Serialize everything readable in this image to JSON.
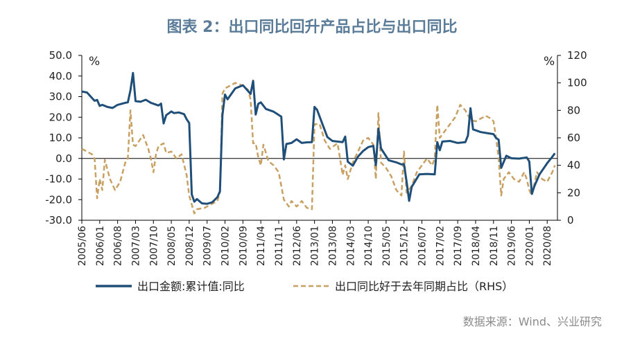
{
  "chart_data": {
    "type": "line",
    "title": "图表 2：出口同比回升产品占比与出口同比",
    "source": "数据来源：Wind、兴业研究",
    "left_unit": "%",
    "right_unit": "%",
    "y_left": {
      "min": -30,
      "max": 50,
      "ticks": [
        "50.0",
        "40.0",
        "30.0",
        "20.0",
        "10.0",
        "0.0",
        "-10.0",
        "-20.0",
        "-30.0"
      ]
    },
    "y_right": {
      "min": 0,
      "max": 120,
      "ticks": [
        "120",
        "100",
        "80",
        "60",
        "40",
        "20",
        "0"
      ]
    },
    "x_range": {
      "start": "2005-06",
      "end": "2020-12"
    },
    "x_ticks": [
      "2005/06",
      "2006/01",
      "2006/08",
      "2007/03",
      "2007/10",
      "2008/05",
      "2008/12",
      "2009/07",
      "2010/02",
      "2010/09",
      "2011/04",
      "2011/11",
      "2012/06",
      "2013/01",
      "2013/08",
      "2014/03",
      "2014/10",
      "2015/05",
      "2015/12",
      "2016/07",
      "2017/02",
      "2017/09",
      "2018/04",
      "2018/11",
      "2019/06",
      "2020/01",
      "2020/08"
    ],
    "legend_position": "bottom",
    "series": [
      {
        "name": "出口金额:累计值:同比",
        "axis": "left",
        "color": "#1f4e79",
        "style": "solid",
        "points": [
          [
            "2005-06",
            32.5
          ],
          [
            "2005-08",
            32
          ],
          [
            "2005-11",
            28
          ],
          [
            "2005-12",
            28.4
          ],
          [
            "2006-01",
            25.5
          ],
          [
            "2006-02",
            26
          ],
          [
            "2006-04",
            25
          ],
          [
            "2006-06",
            24.5
          ],
          [
            "2006-08",
            26
          ],
          [
            "2006-11",
            27
          ],
          [
            "2006-12",
            27.2
          ],
          [
            "2007-01",
            33
          ],
          [
            "2007-02",
            41.5
          ],
          [
            "2007-03",
            27.8
          ],
          [
            "2007-05",
            27.5
          ],
          [
            "2007-07",
            28.5
          ],
          [
            "2007-09",
            27
          ],
          [
            "2007-12",
            25.7
          ],
          [
            "2008-01",
            26.6
          ],
          [
            "2008-02",
            17
          ],
          [
            "2008-03",
            21
          ],
          [
            "2008-05",
            22.8
          ],
          [
            "2008-06",
            22
          ],
          [
            "2008-08",
            22.3
          ],
          [
            "2008-10",
            21.5
          ],
          [
            "2008-11",
            19
          ],
          [
            "2008-12",
            17.2
          ],
          [
            "2009-01",
            -17.5
          ],
          [
            "2009-02",
            -21
          ],
          [
            "2009-03",
            -19.7
          ],
          [
            "2009-05",
            -21.8
          ],
          [
            "2009-07",
            -22
          ],
          [
            "2009-09",
            -21.3
          ],
          [
            "2009-11",
            -18.8
          ],
          [
            "2009-12",
            -16
          ],
          [
            "2010-01",
            21
          ],
          [
            "2010-02",
            31
          ],
          [
            "2010-03",
            28.7
          ],
          [
            "2010-06",
            34
          ],
          [
            "2010-09",
            35.5
          ],
          [
            "2010-12",
            31.3
          ],
          [
            "2011-01",
            37.7
          ],
          [
            "2011-02",
            21.3
          ],
          [
            "2011-03",
            26.5
          ],
          [
            "2011-04",
            27.2
          ],
          [
            "2011-06",
            24
          ],
          [
            "2011-09",
            22.7
          ],
          [
            "2011-12",
            20.3
          ],
          [
            "2012-01",
            -0.5
          ],
          [
            "2012-02",
            7
          ],
          [
            "2012-04",
            7.5
          ],
          [
            "2012-06",
            9.3
          ],
          [
            "2012-08",
            7.5
          ],
          [
            "2012-10",
            7.8
          ],
          [
            "2012-12",
            7.9
          ],
          [
            "2013-01",
            25
          ],
          [
            "2013-02",
            23.6
          ],
          [
            "2013-04",
            17
          ],
          [
            "2013-06",
            10.4
          ],
          [
            "2013-08",
            8.5
          ],
          [
            "2013-10",
            8.2
          ],
          [
            "2013-12",
            7.9
          ],
          [
            "2014-01",
            10.6
          ],
          [
            "2014-02",
            -1.6
          ],
          [
            "2014-04",
            -3.5
          ],
          [
            "2014-06",
            0.9
          ],
          [
            "2014-08",
            3.6
          ],
          [
            "2014-10",
            5.5
          ],
          [
            "2014-12",
            6.1
          ],
          [
            "2015-01",
            -3.3
          ],
          [
            "2015-02",
            14.5
          ],
          [
            "2015-03",
            4.9
          ],
          [
            "2015-06",
            -0.9
          ],
          [
            "2015-09",
            -1.9
          ],
          [
            "2015-11",
            -2.9
          ],
          [
            "2015-12",
            -2.8
          ],
          [
            "2016-01",
            -11.2
          ],
          [
            "2016-02",
            -20.6
          ],
          [
            "2016-03",
            -13.8
          ],
          [
            "2016-06",
            -7.7
          ],
          [
            "2016-09",
            -7.5
          ],
          [
            "2016-12",
            -7.7
          ],
          [
            "2017-01",
            7.9
          ],
          [
            "2017-02",
            4
          ],
          [
            "2017-03",
            8.2
          ],
          [
            "2017-06",
            8.5
          ],
          [
            "2017-09",
            7.5
          ],
          [
            "2017-12",
            7.9
          ],
          [
            "2018-01",
            11.1
          ],
          [
            "2018-02",
            24.4
          ],
          [
            "2018-03",
            14.1
          ],
          [
            "2018-06",
            12.8
          ],
          [
            "2018-09",
            12.2
          ],
          [
            "2018-11",
            11.8
          ],
          [
            "2018-12",
            9.9
          ],
          [
            "2019-01",
            9.1
          ],
          [
            "2019-02",
            -4.6
          ],
          [
            "2019-04",
            1.3
          ],
          [
            "2019-06",
            0.1
          ],
          [
            "2019-09",
            -0.1
          ],
          [
            "2019-12",
            0.5
          ],
          [
            "2020-01",
            -1.5
          ],
          [
            "2020-02",
            -17.2
          ],
          [
            "2020-03",
            -13.4
          ],
          [
            "2020-05",
            -7.7
          ],
          [
            "2020-08",
            -2.3
          ],
          [
            "2020-10",
            0.8
          ],
          [
            "2020-11",
            2.5
          ]
        ]
      },
      {
        "name": "出口同比好于去年同期占比（RHS）",
        "axis": "right",
        "color": "#c8a062",
        "style": "dashed",
        "points": [
          [
            "2005-06",
            52
          ],
          [
            "2005-08",
            50
          ],
          [
            "2005-10",
            48
          ],
          [
            "2005-11",
            45
          ],
          [
            "2005-12",
            16
          ],
          [
            "2006-01",
            30
          ],
          [
            "2006-02",
            22
          ],
          [
            "2006-03",
            44
          ],
          [
            "2006-05",
            30
          ],
          [
            "2006-07",
            22
          ],
          [
            "2006-09",
            28
          ],
          [
            "2006-11",
            42
          ],
          [
            "2006-12",
            45
          ],
          [
            "2007-01",
            80
          ],
          [
            "2007-02",
            55
          ],
          [
            "2007-03",
            54
          ],
          [
            "2007-06",
            62
          ],
          [
            "2007-08",
            52
          ],
          [
            "2007-09",
            45
          ],
          [
            "2007-10",
            35
          ],
          [
            "2007-11",
            48
          ],
          [
            "2007-12",
            54
          ],
          [
            "2008-02",
            56
          ],
          [
            "2008-03",
            49
          ],
          [
            "2008-05",
            50
          ],
          [
            "2008-07",
            45
          ],
          [
            "2008-09",
            48
          ],
          [
            "2008-11",
            33
          ],
          [
            "2008-12",
            18
          ],
          [
            "2009-02",
            5
          ],
          [
            "2009-03",
            8
          ],
          [
            "2009-06",
            9
          ],
          [
            "2009-09",
            12
          ],
          [
            "2009-11",
            14
          ],
          [
            "2009-12",
            20
          ],
          [
            "2010-01",
            92
          ],
          [
            "2010-02",
            96
          ],
          [
            "2010-04",
            98
          ],
          [
            "2010-06",
            100
          ],
          [
            "2010-09",
            98
          ],
          [
            "2010-11",
            95
          ],
          [
            "2010-12",
            88
          ],
          [
            "2011-01",
            56
          ],
          [
            "2011-02",
            56
          ],
          [
            "2011-03",
            46
          ],
          [
            "2011-04",
            40
          ],
          [
            "2011-05",
            55
          ],
          [
            "2011-07",
            43
          ],
          [
            "2011-09",
            40
          ],
          [
            "2011-11",
            35
          ],
          [
            "2012-01",
            15
          ],
          [
            "2012-03",
            10
          ],
          [
            "2012-04",
            14
          ],
          [
            "2012-06",
            10
          ],
          [
            "2012-08",
            14
          ],
          [
            "2012-10",
            9
          ],
          [
            "2012-12",
            8
          ],
          [
            "2013-01",
            70
          ],
          [
            "2013-03",
            70
          ],
          [
            "2013-05",
            58
          ],
          [
            "2013-07",
            52
          ],
          [
            "2013-10",
            56
          ],
          [
            "2013-11",
            45
          ],
          [
            "2013-12",
            33
          ],
          [
            "2014-01",
            40
          ],
          [
            "2014-02",
            30
          ],
          [
            "2014-04",
            42
          ],
          [
            "2014-06",
            50
          ],
          [
            "2014-08",
            58
          ],
          [
            "2014-10",
            60
          ],
          [
            "2014-12",
            55
          ],
          [
            "2015-01",
            30
          ],
          [
            "2015-02",
            78
          ],
          [
            "2015-03",
            42
          ],
          [
            "2015-05",
            38
          ],
          [
            "2015-07",
            32
          ],
          [
            "2015-09",
            22
          ],
          [
            "2015-11",
            18
          ],
          [
            "2015-12",
            50
          ],
          [
            "2016-01",
            20
          ],
          [
            "2016-03",
            25
          ],
          [
            "2016-05",
            35
          ],
          [
            "2016-07",
            40
          ],
          [
            "2016-09",
            45
          ],
          [
            "2016-11",
            40
          ],
          [
            "2016-12",
            45
          ],
          [
            "2017-01",
            84
          ],
          [
            "2017-02",
            60
          ],
          [
            "2017-04",
            65
          ],
          [
            "2017-06",
            70
          ],
          [
            "2017-08",
            75
          ],
          [
            "2017-10",
            84
          ],
          [
            "2017-12",
            80
          ],
          [
            "2018-02",
            73
          ],
          [
            "2018-04",
            72
          ],
          [
            "2018-06",
            74
          ],
          [
            "2018-08",
            76
          ],
          [
            "2018-10",
            74
          ],
          [
            "2018-11",
            72
          ],
          [
            "2018-12",
            60
          ],
          [
            "2019-01",
            45
          ],
          [
            "2019-02",
            18
          ],
          [
            "2019-03",
            30
          ],
          [
            "2019-05",
            35
          ],
          [
            "2019-07",
            30
          ],
          [
            "2019-09",
            28
          ],
          [
            "2019-11",
            35
          ],
          [
            "2019-12",
            30
          ],
          [
            "2020-01",
            22
          ],
          [
            "2020-02",
            18
          ],
          [
            "2020-04",
            35
          ],
          [
            "2020-06",
            30
          ],
          [
            "2020-08",
            28
          ],
          [
            "2020-10",
            35
          ],
          [
            "2020-11",
            40
          ]
        ]
      }
    ]
  }
}
